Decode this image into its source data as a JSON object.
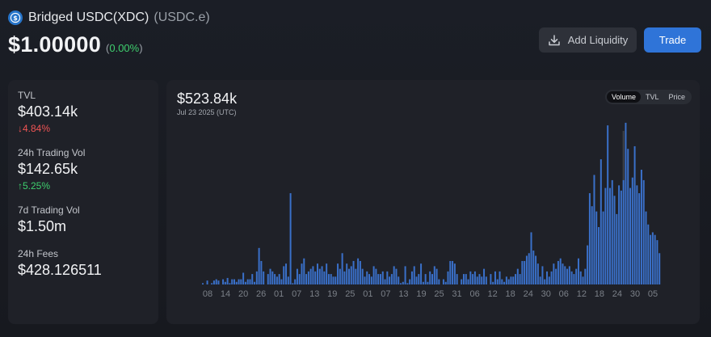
{
  "token": {
    "name": "Bridged USDC(XDC)",
    "symbol": "(USDC.e)",
    "price": "$1.00000",
    "price_change_open": "(",
    "price_change_pct": "0.00%",
    "price_change_close": ")",
    "logo_icon": "usdc-logo-icon"
  },
  "actions": {
    "add_liquidity_label": "Add Liquidity",
    "trade_label": "Trade"
  },
  "stats": {
    "tvl_label": "TVL",
    "tvl_value": "$403.14k",
    "tvl_change": "4.84%",
    "vol24_label": "24h Trading Vol",
    "vol24_value": "$142.65k",
    "vol24_change": "5.25%",
    "vol7_label": "7d Trading Vol",
    "vol7_value": "$1.50m",
    "fees_label": "24h Fees",
    "fees_value": "$428.126511"
  },
  "chart_header": {
    "value": "$523.84k",
    "date": "Jul 23 2025 (UTC)"
  },
  "toggle": {
    "options": [
      "Volume",
      "TVL",
      "Price"
    ],
    "active": "Volume"
  },
  "colors": {
    "bar": "#3a70c9",
    "bar_highlight": "#3d4149",
    "up": "#3ecf6e",
    "down": "#f05454",
    "accent": "#2f74d8"
  },
  "chart_data": {
    "type": "bar",
    "x_ticks": [
      "08",
      "14",
      "20",
      "26",
      "01",
      "07",
      "13",
      "19",
      "25",
      "01",
      "07",
      "13",
      "19",
      "25",
      "31",
      "06",
      "12",
      "18",
      "24",
      "30",
      "06",
      "12",
      "18",
      "24",
      "30",
      "05"
    ],
    "values": [
      0.5,
      0,
      1.5,
      0,
      0.5,
      1.5,
      2,
      1.5,
      0,
      2,
      1,
      2.5,
      0.5,
      2,
      2,
      1,
      2,
      2,
      4.5,
      1,
      2,
      2,
      4,
      1,
      5,
      14,
      9,
      5,
      0,
      4,
      6,
      5,
      4,
      3,
      4,
      2,
      7,
      8,
      3,
      35,
      0.5,
      2,
      6,
      4,
      8,
      10,
      4,
      5,
      6,
      7,
      5,
      8,
      6,
      7,
      5,
      8,
      4,
      4,
      3,
      3,
      8,
      6,
      12,
      5,
      8,
      6,
      7,
      9,
      6,
      10,
      9,
      6,
      3,
      5,
      4,
      3,
      7,
      6,
      4,
      4,
      5,
      2,
      5,
      3,
      4,
      7,
      6,
      3,
      0.5,
      1,
      7,
      0.5,
      2,
      5,
      7,
      3,
      4,
      8,
      1,
      4,
      1,
      5,
      4,
      7,
      6,
      2,
      0,
      2,
      1,
      5,
      9,
      9,
      8,
      4,
      0,
      2,
      4,
      4,
      2,
      5,
      4,
      5,
      3,
      4,
      3,
      6,
      3,
      0,
      4,
      1,
      5,
      2,
      5,
      2,
      1,
      3,
      2,
      3,
      3,
      4,
      6,
      4,
      9,
      9,
      11,
      12,
      20,
      13,
      11,
      8,
      3,
      7,
      2,
      5,
      3,
      5,
      8,
      6,
      9,
      10,
      8,
      7,
      6,
      7,
      5,
      4,
      6,
      10,
      5,
      3,
      6,
      15,
      35,
      30,
      42,
      28,
      22,
      48,
      28,
      37,
      61,
      37,
      40,
      34,
      27,
      38,
      36,
      40,
      62,
      52,
      37,
      41,
      53,
      38,
      35,
      44,
      40,
      28,
      23,
      19,
      20,
      19,
      17,
      12
    ],
    "highlight_index": 187,
    "ylim": [
      0,
      66
    ]
  }
}
